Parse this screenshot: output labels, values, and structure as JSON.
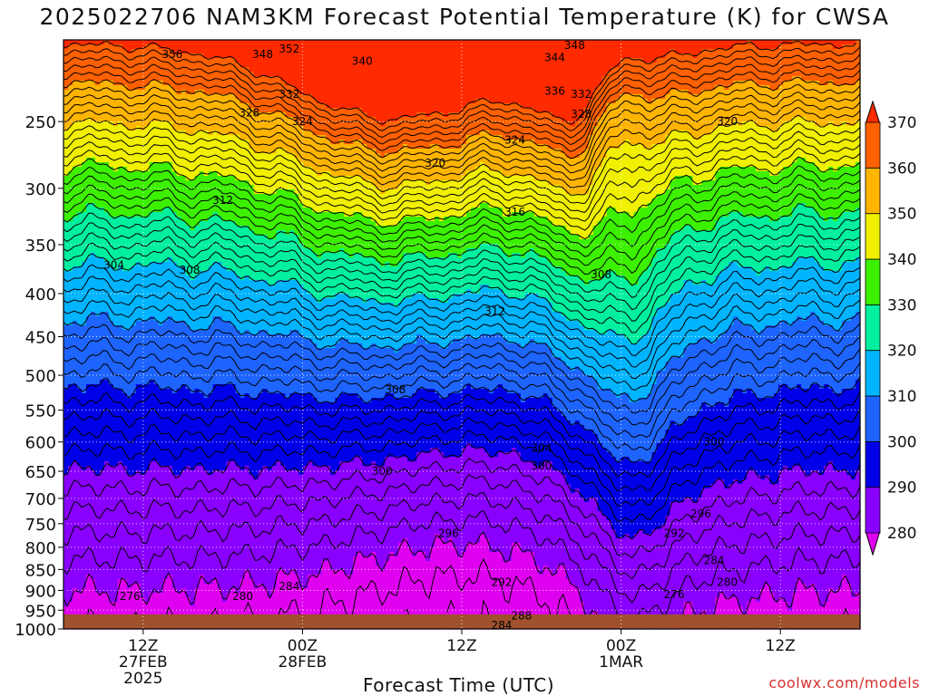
{
  "chart_data": {
    "type": "heatmap",
    "title": "2025022706 NAM3KM Forecast Potential Temperature (K) for CWSA",
    "xlabel": "Forecast Time (UTC)",
    "ylabel": "",
    "y_ticks": [
      250,
      300,
      350,
      400,
      450,
      500,
      550,
      600,
      650,
      700,
      750,
      800,
      850,
      900,
      950,
      1000
    ],
    "y_range": [
      200,
      1000
    ],
    "y_scale": "log",
    "x_range_hours": [
      6,
      66
    ],
    "x_ticks": [
      {
        "hour": 12,
        "lines": [
          "12Z",
          "27FEB",
          "2025"
        ]
      },
      {
        "hour": 24,
        "lines": [
          "00Z",
          "28FEB"
        ]
      },
      {
        "hour": 36,
        "lines": [
          "12Z"
        ]
      },
      {
        "hour": 48,
        "lines": [
          "00Z",
          "1MAR"
        ]
      },
      {
        "hour": 60,
        "lines": [
          "12Z"
        ]
      }
    ],
    "colorbar": {
      "levels": [
        280,
        290,
        300,
        310,
        320,
        330,
        340,
        350,
        360,
        370
      ],
      "colors": [
        "#e000f0",
        "#8a00ff",
        "#0000e8",
        "#1e64ff",
        "#00b4ff",
        "#00f0a0",
        "#3cf000",
        "#f0f000",
        "#ffb400",
        "#ff6000",
        "#ff2a00"
      ]
    },
    "contour_labels": [
      {
        "text": "356",
        "hour": 14.2,
        "p": 208
      },
      {
        "text": "348",
        "hour": 21.0,
        "p": 208
      },
      {
        "text": "352",
        "hour": 23.0,
        "p": 205
      },
      {
        "text": "340",
        "hour": 28.5,
        "p": 212
      },
      {
        "text": "332",
        "hour": 23.0,
        "p": 232
      },
      {
        "text": "328",
        "hour": 20.0,
        "p": 244
      },
      {
        "text": "324",
        "hour": 24.0,
        "p": 250
      },
      {
        "text": "320",
        "hour": 34.0,
        "p": 280
      },
      {
        "text": "324",
        "hour": 40.0,
        "p": 263
      },
      {
        "text": "348",
        "hour": 44.5,
        "p": 203
      },
      {
        "text": "344",
        "hour": 43.0,
        "p": 210
      },
      {
        "text": "336",
        "hour": 43.0,
        "p": 230
      },
      {
        "text": "332",
        "hour": 45.0,
        "p": 232
      },
      {
        "text": "328",
        "hour": 45.0,
        "p": 245
      },
      {
        "text": "320",
        "hour": 56.0,
        "p": 250
      },
      {
        "text": "316",
        "hour": 40.0,
        "p": 320
      },
      {
        "text": "312",
        "hour": 18.0,
        "p": 310
      },
      {
        "text": "304",
        "hour": 9.8,
        "p": 370
      },
      {
        "text": "308",
        "hour": 15.5,
        "p": 375
      },
      {
        "text": "308",
        "hour": 46.5,
        "p": 380
      },
      {
        "text": "312",
        "hour": 38.5,
        "p": 420
      },
      {
        "text": "308",
        "hour": 31.0,
        "p": 520
      },
      {
        "text": "304",
        "hour": 42.0,
        "p": 610
      },
      {
        "text": "300",
        "hour": 42.0,
        "p": 640
      },
      {
        "text": "300",
        "hour": 30.0,
        "p": 650
      },
      {
        "text": "300",
        "hour": 55.0,
        "p": 600
      },
      {
        "text": "296",
        "hour": 54.0,
        "p": 730
      },
      {
        "text": "292",
        "hour": 52.0,
        "p": 770
      },
      {
        "text": "296",
        "hour": 35.0,
        "p": 770
      },
      {
        "text": "284",
        "hour": 55.0,
        "p": 830
      },
      {
        "text": "280",
        "hour": 56.0,
        "p": 880
      },
      {
        "text": "276",
        "hour": 52.0,
        "p": 910
      },
      {
        "text": "292",
        "hour": 39.0,
        "p": 880
      },
      {
        "text": "284",
        "hour": 23.0,
        "p": 890
      },
      {
        "text": "280",
        "hour": 19.5,
        "p": 915
      },
      {
        "text": "276",
        "hour": 11.0,
        "p": 915
      },
      {
        "text": "288",
        "hour": 40.5,
        "p": 965
      },
      {
        "text": "284",
        "hour": 39.0,
        "p": 990
      }
    ],
    "contour_interval": 2,
    "terrain_color": "#a0522d",
    "credit": "coolwx.com/models"
  }
}
